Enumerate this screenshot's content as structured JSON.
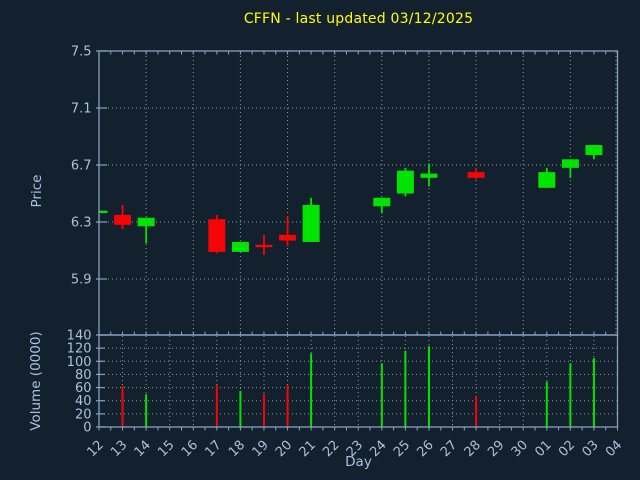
{
  "colors": {
    "background": "#13202d",
    "spine": "#87a3c2",
    "tick_label": "#a9c2dd",
    "grid": "#8f979e",
    "title": "#ffff00",
    "up": "#00e400",
    "down": "#f50505"
  },
  "chart_data": {
    "type": "candlestick",
    "title": "CFFN - last updated 03/12/2025",
    "xlabel": "Day",
    "legend": "none",
    "grid": "dotted",
    "price_axis": {
      "label": "Price",
      "ticks": [
        7.5,
        7.1,
        6.7,
        6.3,
        5.9
      ],
      "grid_ticks": [
        7.1,
        6.7,
        6.3,
        5.9
      ],
      "ylim": [
        5.51,
        7.5
      ]
    },
    "volume_axis": {
      "label": "Volume (0000)",
      "ticks": [
        140,
        120,
        100,
        80,
        60,
        40,
        20,
        0
      ],
      "grid_ticks": [
        120,
        100,
        80,
        60,
        40,
        20
      ],
      "ylim": [
        0,
        140
      ]
    },
    "x_labels": [
      "12",
      "13",
      "14",
      "15",
      "16",
      "17",
      "18",
      "19",
      "20",
      "21",
      "22",
      "23",
      "24",
      "25",
      "26",
      "27",
      "28",
      "29",
      "30",
      "01",
      "02",
      "03",
      "04"
    ],
    "price_grid_every_n_days": 2,
    "volume_grid_every_n_days": 1,
    "candles": [
      {
        "day": "12",
        "x_index": 0,
        "open": 6.37,
        "high": 6.38,
        "low": 6.37,
        "close": 6.38,
        "volume": 0
      },
      {
        "day": "13",
        "x_index": 1,
        "open": 6.35,
        "high": 6.42,
        "low": 6.25,
        "close": 6.28,
        "volume": 62
      },
      {
        "day": "14",
        "x_index": 2,
        "open": 6.27,
        "high": 6.33,
        "low": 6.15,
        "close": 6.33,
        "volume": 50
      },
      {
        "day": "17",
        "x_index": 5,
        "open": 6.32,
        "high": 6.35,
        "low": 6.08,
        "close": 6.09,
        "volume": 64
      },
      {
        "day": "18",
        "x_index": 6,
        "open": 6.09,
        "high": 6.16,
        "low": 6.09,
        "close": 6.16,
        "volume": 55
      },
      {
        "day": "19",
        "x_index": 7,
        "open": 6.14,
        "high": 6.21,
        "low": 6.07,
        "close": 6.13,
        "volume": 50
      },
      {
        "day": "20",
        "x_index": 8,
        "open": 6.21,
        "high": 6.34,
        "low": 6.13,
        "close": 6.17,
        "volume": 64
      },
      {
        "day": "21",
        "x_index": 9,
        "open": 6.16,
        "high": 6.47,
        "low": 6.16,
        "close": 6.42,
        "volume": 112
      },
      {
        "day": "24",
        "x_index": 12,
        "open": 6.41,
        "high": 6.47,
        "low": 6.36,
        "close": 6.47,
        "volume": 97
      },
      {
        "day": "25",
        "x_index": 13,
        "open": 6.5,
        "high": 6.68,
        "low": 6.48,
        "close": 6.66,
        "volume": 116
      },
      {
        "day": "26",
        "x_index": 14,
        "open": 6.61,
        "high": 6.71,
        "low": 6.55,
        "close": 6.64,
        "volume": 123
      },
      {
        "day": "28",
        "x_index": 16,
        "open": 6.65,
        "high": 6.68,
        "low": 6.6,
        "close": 6.61,
        "volume": 47
      },
      {
        "day": "01",
        "x_index": 19,
        "open": 6.54,
        "high": 6.68,
        "low": 6.54,
        "close": 6.65,
        "volume": 69
      },
      {
        "day": "02",
        "x_index": 20,
        "open": 6.68,
        "high": 6.74,
        "low": 6.61,
        "close": 6.74,
        "volume": 97
      },
      {
        "day": "03",
        "x_index": 21,
        "open": 6.77,
        "high": 6.84,
        "low": 6.74,
        "close": 6.84,
        "volume": 105
      }
    ]
  }
}
